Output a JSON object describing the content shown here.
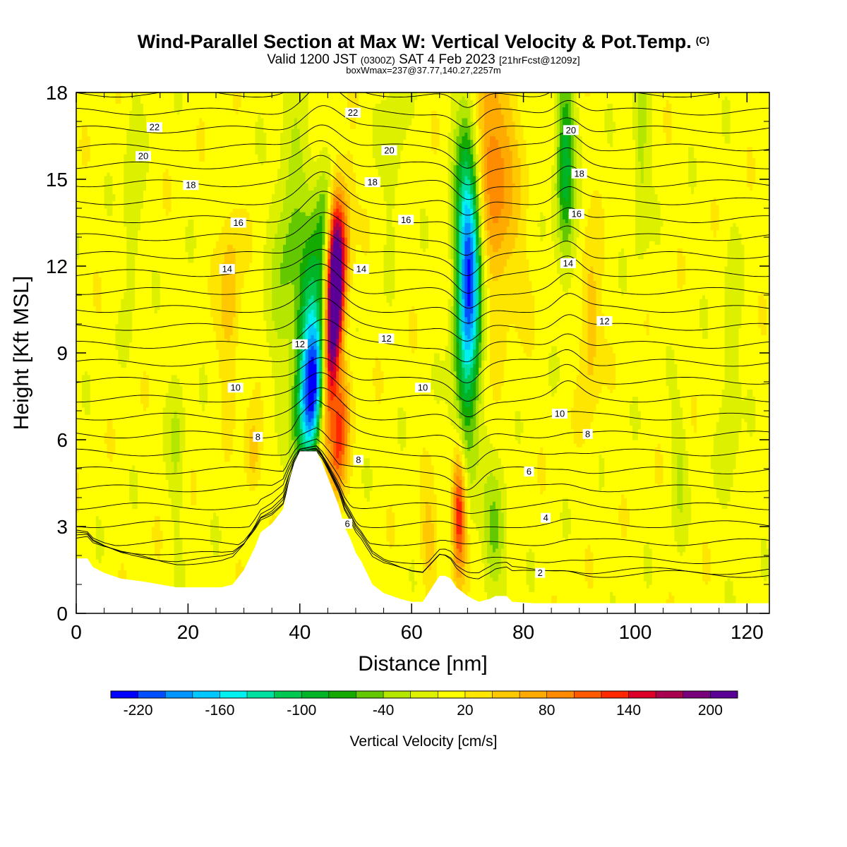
{
  "header": {
    "title": "Wind-Parallel Section at Max W: Vertical Velocity & Pot.Temp.",
    "copyright_mark": "(C)",
    "valid_prefix": "Valid 1200 JST",
    "valid_utc": "(0300Z)",
    "valid_date": "SAT 4 Feb 2023",
    "forecast_info": "[21hrFcst@1209z]",
    "box_info": "boxWmax=237@37.77,140.27,2257m"
  },
  "chart_data": {
    "type": "heatmap",
    "title": "Wind-Parallel Section at Max W: Vertical Velocity & Pot.Temp.",
    "xlabel": "Distance [nm]",
    "ylabel": "Height [Kft MSL]",
    "xlim": [
      0,
      124
    ],
    "ylim": [
      0,
      18
    ],
    "x_ticks": [
      0,
      20,
      40,
      60,
      80,
      100,
      120
    ],
    "y_ticks": [
      0,
      3,
      6,
      9,
      12,
      15,
      18
    ],
    "colorbar": {
      "label": "Vertical Velocity [cm/s]",
      "tick_labels": [
        "-220",
        "-160",
        "-100",
        "-40",
        "20",
        "80",
        "140",
        "200"
      ],
      "tick_values": [
        -220,
        -160,
        -100,
        -40,
        20,
        80,
        140,
        200
      ],
      "min": -220,
      "max": 220,
      "step": 20,
      "colors": [
        "#0000ff",
        "#0050ff",
        "#0096ff",
        "#00c8ff",
        "#00f0f0",
        "#00e0a0",
        "#00c850",
        "#00b428",
        "#14aa00",
        "#64c800",
        "#b4e600",
        "#dcf000",
        "#ffff00",
        "#ffe600",
        "#ffc800",
        "#ffaa00",
        "#ff8c00",
        "#ff5a00",
        "#ff2800",
        "#dc0028",
        "#aa0050",
        "#78007a",
        "#5a0096"
      ]
    },
    "terrain": [
      [
        0,
        1.9
      ],
      [
        2,
        1.9
      ],
      [
        3,
        1.6
      ],
      [
        5,
        1.4
      ],
      [
        8,
        1.2
      ],
      [
        12,
        1.1
      ],
      [
        15,
        1.0
      ],
      [
        18,
        0.9
      ],
      [
        22,
        0.9
      ],
      [
        26,
        0.9
      ],
      [
        28,
        1.0
      ],
      [
        30,
        1.5
      ],
      [
        32,
        2.3
      ],
      [
        33,
        2.8
      ],
      [
        35,
        3.1
      ],
      [
        37,
        3.6
      ],
      [
        38,
        4.5
      ],
      [
        39,
        5.2
      ],
      [
        40,
        5.6
      ],
      [
        43,
        5.6
      ],
      [
        44,
        5.2
      ],
      [
        45,
        4.7
      ],
      [
        46,
        4.2
      ],
      [
        47,
        3.7
      ],
      [
        48,
        3.0
      ],
      [
        49,
        2.6
      ],
      [
        50,
        2.1
      ],
      [
        51,
        1.8
      ],
      [
        52,
        1.4
      ],
      [
        53,
        1.0
      ],
      [
        55,
        0.7
      ],
      [
        58,
        0.5
      ],
      [
        60,
        0.4
      ],
      [
        62,
        0.4
      ],
      [
        64,
        1.0
      ],
      [
        65,
        1.3
      ],
      [
        66,
        1.3
      ],
      [
        67,
        1.2
      ],
      [
        68,
        0.9
      ],
      [
        70,
        0.6
      ],
      [
        72,
        0.4
      ],
      [
        74,
        0.5
      ],
      [
        75,
        0.6
      ],
      [
        77,
        0.6
      ],
      [
        78,
        0.4
      ],
      [
        82,
        0.35
      ],
      [
        90,
        0.35
      ],
      [
        100,
        0.35
      ],
      [
        110,
        0.35
      ],
      [
        120,
        0.35
      ],
      [
        124,
        0.35
      ]
    ],
    "velocity_features": [
      {
        "x": 42.5,
        "y": 7.5,
        "sx": 1.8,
        "sy": 1.8,
        "w": -220,
        "tilt": 0.35
      },
      {
        "x": 41.5,
        "y": 10.0,
        "sx": 1.6,
        "sy": 2.2,
        "w": -110,
        "tilt": 0.2
      },
      {
        "x": 44.5,
        "y": 13.0,
        "sx": 1.2,
        "sy": 1.8,
        "w": -80,
        "tilt": 0
      },
      {
        "x": 45.8,
        "y": 9.5,
        "sx": 1.2,
        "sy": 2.6,
        "w": 230,
        "tilt": 0.45
      },
      {
        "x": 46.0,
        "y": 12.5,
        "sx": 1.1,
        "sy": 1.6,
        "w": 160,
        "tilt": 0.2
      },
      {
        "x": 47.0,
        "y": 6.0,
        "sx": 1.2,
        "sy": 1.5,
        "w": 110,
        "tilt": 0.3
      },
      {
        "x": 70.5,
        "y": 11.5,
        "sx": 1.5,
        "sy": 2.2,
        "w": -150,
        "tilt": 0
      },
      {
        "x": 70.0,
        "y": 14.5,
        "sx": 1.6,
        "sy": 3.0,
        "w": -110,
        "tilt": 0
      },
      {
        "x": 69.5,
        "y": 7.5,
        "sx": 1.5,
        "sy": 2.8,
        "w": -80,
        "tilt": 0
      },
      {
        "x": 68.5,
        "y": 3.5,
        "sx": 0.9,
        "sy": 1.6,
        "w": 150,
        "tilt": 0
      },
      {
        "x": 74.5,
        "y": 15.5,
        "sx": 2.8,
        "sy": 3.0,
        "w": 90,
        "tilt": -0.3
      },
      {
        "x": 87.5,
        "y": 15.5,
        "sx": 1.2,
        "sy": 2.5,
        "w": -100,
        "tilt": 0
      },
      {
        "x": 38.0,
        "y": 13.0,
        "sx": 2.0,
        "sy": 3.0,
        "w": -55,
        "tilt": 0.3
      },
      {
        "x": 27.5,
        "y": 11.0,
        "sx": 1.3,
        "sy": 2.0,
        "w": 50,
        "tilt": 0
      },
      {
        "x": 31.5,
        "y": 5.5,
        "sx": 1.0,
        "sy": 1.0,
        "w": 50,
        "tilt": 0
      },
      {
        "x": 92.0,
        "y": 10.0,
        "sx": 1.2,
        "sy": 2.0,
        "w": 50,
        "tilt": 0
      },
      {
        "x": 75.0,
        "y": 3.0,
        "sx": 1.5,
        "sy": 1.4,
        "w": -60,
        "tilt": 0
      },
      {
        "x": 63.0,
        "y": 2.5,
        "sx": 1.0,
        "sy": 1.2,
        "w": 40,
        "tilt": 0
      },
      {
        "x": 101.0,
        "y": 16.0,
        "sx": 1.0,
        "sy": 2.5,
        "w": -40,
        "tilt": 0
      },
      {
        "x": 10.0,
        "y": 14.0,
        "sx": 1.2,
        "sy": 2.5,
        "w": -30,
        "tilt": 0
      },
      {
        "x": 18.0,
        "y": 6.0,
        "sx": 1.0,
        "sy": 2.0,
        "w": -30,
        "tilt": 0
      },
      {
        "x": 117.0,
        "y": 8.0,
        "sx": 1.2,
        "sy": 3.0,
        "w": -30,
        "tilt": 0
      },
      {
        "x": 108.0,
        "y": 5.0,
        "sx": 1.0,
        "sy": 1.5,
        "w": -30,
        "tilt": 0
      },
      {
        "x": 57.0,
        "y": 16.0,
        "sx": 1.5,
        "sy": 2.0,
        "w": -25,
        "tilt": 0
      }
    ],
    "theta_contour_labels": [
      {
        "text": "22",
        "x": 14,
        "y": 16.8
      },
      {
        "text": "20",
        "x": 12,
        "y": 15.8
      },
      {
        "text": "18",
        "x": 20.5,
        "y": 14.8
      },
      {
        "text": "16",
        "x": 29,
        "y": 13.5
      },
      {
        "text": "14",
        "x": 27,
        "y": 11.9
      },
      {
        "text": "12",
        "x": 40,
        "y": 9.3
      },
      {
        "text": "10",
        "x": 28.5,
        "y": 7.8
      },
      {
        "text": "8",
        "x": 32.5,
        "y": 6.1
      },
      {
        "text": "22",
        "x": 49.5,
        "y": 17.3
      },
      {
        "text": "20",
        "x": 56,
        "y": 16.0
      },
      {
        "text": "18",
        "x": 53,
        "y": 14.9
      },
      {
        "text": "16",
        "x": 59,
        "y": 13.6
      },
      {
        "text": "14",
        "x": 51,
        "y": 11.9
      },
      {
        "text": "12",
        "x": 55.5,
        "y": 9.5
      },
      {
        "text": "10",
        "x": 62,
        "y": 7.8
      },
      {
        "text": "8",
        "x": 50.5,
        "y": 5.3
      },
      {
        "text": "6",
        "x": 48.5,
        "y": 3.1
      },
      {
        "text": "20",
        "x": 88.5,
        "y": 16.7
      },
      {
        "text": "18",
        "x": 90,
        "y": 15.2
      },
      {
        "text": "16",
        "x": 89.5,
        "y": 13.8
      },
      {
        "text": "14",
        "x": 88,
        "y": 12.1
      },
      {
        "text": "12",
        "x": 94.5,
        "y": 10.1
      },
      {
        "text": "10",
        "x": 86.5,
        "y": 6.9
      },
      {
        "text": "8",
        "x": 91.5,
        "y": 6.2
      },
      {
        "text": "6",
        "x": 81,
        "y": 4.9
      },
      {
        "text": "4",
        "x": 84,
        "y": 3.3
      },
      {
        "text": "2",
        "x": 83,
        "y": 1.4
      }
    ]
  }
}
